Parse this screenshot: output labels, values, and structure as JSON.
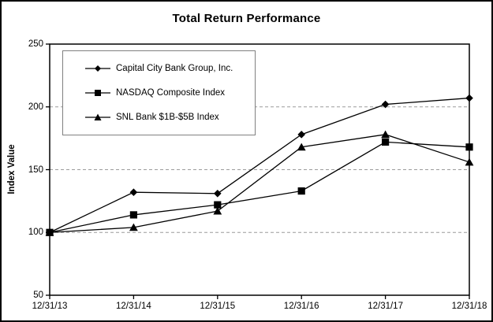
{
  "chart_data": {
    "type": "line",
    "title": "Total Return Performance",
    "xlabel": "",
    "ylabel": "Index Value",
    "categories": [
      "12/31/13",
      "12/31/14",
      "12/31/15",
      "12/31/16",
      "12/31/17",
      "12/31/18"
    ],
    "series": [
      {
        "name": "Capital City Bank Group, Inc.",
        "marker": "diamond",
        "values": [
          100,
          132,
          131,
          178,
          202,
          207
        ]
      },
      {
        "name": "NASDAQ Composite Index",
        "marker": "square",
        "values": [
          100,
          114,
          122,
          133,
          172,
          168
        ]
      },
      {
        "name": "SNL Bank $1B-$5B Index",
        "marker": "triangle",
        "values": [
          100,
          104,
          117,
          168,
          178,
          156
        ]
      }
    ],
    "ylim": [
      50,
      250
    ],
    "yticks": [
      50,
      100,
      150,
      200,
      250
    ],
    "grid": "horizontal-dashed",
    "legend_position": "top-left-inside"
  },
  "colors": {
    "series": "#000000",
    "grid": "#9c9c9c",
    "axis": "#000000",
    "legend_border": "#808080",
    "frame_border": "#000000",
    "background": "#ffffff"
  }
}
